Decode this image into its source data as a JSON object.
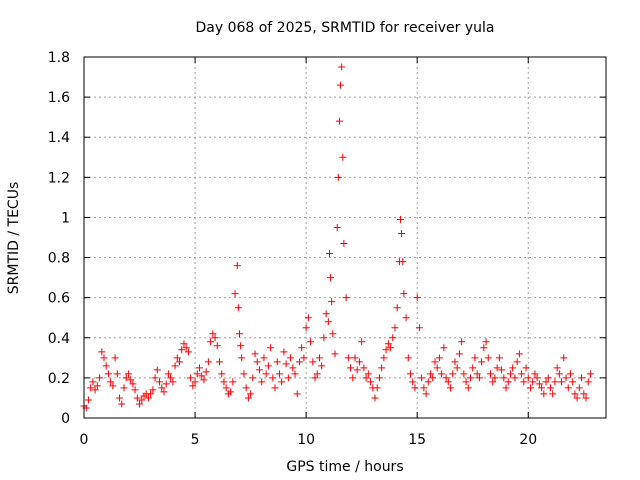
{
  "chart_data": {
    "type": "scatter",
    "title": "Day 068 of 2025, SRMTID for receiver yula",
    "xlabel": "GPS time / hours",
    "ylabel": "SRMTID / TECUs",
    "xlim": [
      0,
      23.5
    ],
    "ylim": [
      0,
      1.8
    ],
    "xticks": [
      0,
      5,
      10,
      15,
      20
    ],
    "xtick_labels": [
      "0",
      "5",
      "10",
      "15",
      "20"
    ],
    "yticks": [
      0,
      0.2,
      0.4,
      0.6,
      0.8,
      1.0,
      1.2,
      1.4,
      1.6,
      1.8
    ],
    "ytick_labels": [
      "0",
      "0.2",
      "0.4",
      "0.6",
      "0.8",
      "1",
      "1.2",
      "1.4",
      "1.6",
      "1.8"
    ],
    "grid": true,
    "marker": "+",
    "marker_color": "#ff0000",
    "series": [
      {
        "name": "SRMTID",
        "x": [
          0.0,
          0.1,
          0.2,
          0.3,
          0.4,
          0.5,
          0.6,
          0.7,
          0.8,
          0.9,
          1.0,
          1.1,
          1.2,
          1.3,
          1.4,
          1.5,
          1.6,
          1.7,
          1.8,
          1.9,
          2.0,
          2.1,
          2.2,
          2.3,
          2.4,
          2.5,
          2.6,
          2.7,
          2.8,
          2.9,
          3.0,
          3.1,
          3.2,
          3.3,
          3.4,
          3.5,
          3.6,
          3.7,
          3.8,
          3.9,
          4.0,
          4.1,
          4.2,
          4.3,
          4.4,
          4.5,
          4.6,
          4.7,
          4.8,
          4.9,
          5.0,
          5.1,
          5.2,
          5.3,
          5.4,
          5.5,
          5.6,
          5.7,
          5.8,
          5.9,
          6.0,
          6.1,
          6.2,
          6.3,
          6.4,
          6.5,
          6.6,
          6.7,
          6.8,
          6.9,
          6.95,
          7.0,
          7.05,
          7.1,
          7.2,
          7.3,
          7.4,
          7.5,
          7.6,
          7.7,
          7.8,
          7.9,
          8.0,
          8.1,
          8.2,
          8.3,
          8.4,
          8.5,
          8.6,
          8.7,
          8.8,
          8.9,
          9.0,
          9.1,
          9.2,
          9.3,
          9.4,
          9.5,
          9.6,
          9.7,
          9.8,
          9.9,
          10.0,
          10.1,
          10.2,
          10.3,
          10.4,
          10.5,
          10.6,
          10.7,
          10.8,
          10.9,
          11.0,
          11.05,
          11.1,
          11.15,
          11.2,
          11.3,
          11.4,
          11.45,
          11.5,
          11.55,
          11.6,
          11.65,
          11.7,
          11.8,
          11.9,
          12.0,
          12.1,
          12.2,
          12.3,
          12.4,
          12.5,
          12.6,
          12.7,
          12.8,
          12.9,
          13.0,
          13.1,
          13.2,
          13.3,
          13.4,
          13.5,
          13.6,
          13.7,
          13.8,
          13.9,
          14.0,
          14.1,
          14.2,
          14.25,
          14.3,
          14.35,
          14.4,
          14.5,
          14.6,
          14.7,
          14.8,
          14.9,
          15.0,
          15.1,
          15.2,
          15.3,
          15.4,
          15.5,
          15.6,
          15.7,
          15.8,
          15.9,
          16.0,
          16.1,
          16.2,
          16.3,
          16.4,
          16.5,
          16.6,
          16.7,
          16.8,
          16.9,
          17.0,
          17.1,
          17.2,
          17.3,
          17.4,
          17.5,
          17.6,
          17.7,
          17.8,
          17.9,
          18.0,
          18.1,
          18.2,
          18.3,
          18.4,
          18.5,
          18.6,
          18.7,
          18.8,
          18.9,
          19.0,
          19.1,
          19.2,
          19.3,
          19.4,
          19.5,
          19.6,
          19.7,
          19.8,
          19.9,
          20.0,
          20.1,
          20.2,
          20.3,
          20.4,
          20.5,
          20.6,
          20.7,
          20.8,
          20.9,
          21.0,
          21.1,
          21.2,
          21.3,
          21.4,
          21.5,
          21.6,
          21.7,
          21.8,
          21.9,
          22.0,
          22.1,
          22.2,
          22.3,
          22.4,
          22.5,
          22.6,
          22.7,
          22.8
        ],
        "y": [
          0.06,
          0.05,
          0.09,
          0.15,
          0.18,
          0.14,
          0.16,
          0.2,
          0.33,
          0.3,
          0.26,
          0.22,
          0.18,
          0.16,
          0.3,
          0.22,
          0.1,
          0.07,
          0.15,
          0.2,
          0.22,
          0.19,
          0.17,
          0.14,
          0.1,
          0.07,
          0.09,
          0.11,
          0.12,
          0.1,
          0.12,
          0.14,
          0.2,
          0.24,
          0.18,
          0.15,
          0.13,
          0.17,
          0.22,
          0.2,
          0.18,
          0.26,
          0.3,
          0.28,
          0.34,
          0.37,
          0.35,
          0.33,
          0.2,
          0.16,
          0.18,
          0.22,
          0.25,
          0.21,
          0.19,
          0.23,
          0.28,
          0.38,
          0.42,
          0.4,
          0.36,
          0.28,
          0.22,
          0.18,
          0.15,
          0.12,
          0.13,
          0.18,
          0.62,
          0.76,
          0.55,
          0.42,
          0.36,
          0.3,
          0.22,
          0.15,
          0.1,
          0.12,
          0.2,
          0.32,
          0.28,
          0.24,
          0.18,
          0.3,
          0.22,
          0.26,
          0.35,
          0.2,
          0.15,
          0.28,
          0.22,
          0.18,
          0.33,
          0.27,
          0.2,
          0.3,
          0.25,
          0.22,
          0.12,
          0.28,
          0.35,
          0.3,
          0.45,
          0.5,
          0.38,
          0.28,
          0.2,
          0.22,
          0.3,
          0.26,
          0.4,
          0.52,
          0.48,
          0.82,
          0.7,
          0.58,
          0.42,
          0.32,
          0.95,
          1.2,
          1.48,
          1.66,
          1.75,
          1.3,
          0.87,
          0.6,
          0.3,
          0.25,
          0.2,
          0.3,
          0.24,
          0.28,
          0.38,
          0.25,
          0.2,
          0.22,
          0.18,
          0.15,
          0.1,
          0.15,
          0.2,
          0.25,
          0.3,
          0.34,
          0.37,
          0.35,
          0.4,
          0.45,
          0.55,
          0.78,
          0.99,
          0.92,
          0.78,
          0.62,
          0.5,
          0.3,
          0.22,
          0.18,
          0.15,
          0.6,
          0.45,
          0.2,
          0.15,
          0.12,
          0.18,
          0.22,
          0.2,
          0.28,
          0.25,
          0.3,
          0.22,
          0.35,
          0.2,
          0.18,
          0.15,
          0.22,
          0.28,
          0.25,
          0.32,
          0.38,
          0.22,
          0.18,
          0.15,
          0.2,
          0.25,
          0.3,
          0.22,
          0.2,
          0.28,
          0.35,
          0.38,
          0.3,
          0.22,
          0.18,
          0.2,
          0.25,
          0.3,
          0.24,
          0.2,
          0.15,
          0.18,
          0.22,
          0.25,
          0.2,
          0.28,
          0.32,
          0.22,
          0.18,
          0.25,
          0.2,
          0.15,
          0.18,
          0.22,
          0.2,
          0.17,
          0.15,
          0.12,
          0.18,
          0.2,
          0.15,
          0.12,
          0.18,
          0.25,
          0.22,
          0.18,
          0.3,
          0.2,
          0.15,
          0.22,
          0.18,
          0.12,
          0.1,
          0.15,
          0.2,
          0.12,
          0.1,
          0.18,
          0.22
        ]
      }
    ]
  }
}
